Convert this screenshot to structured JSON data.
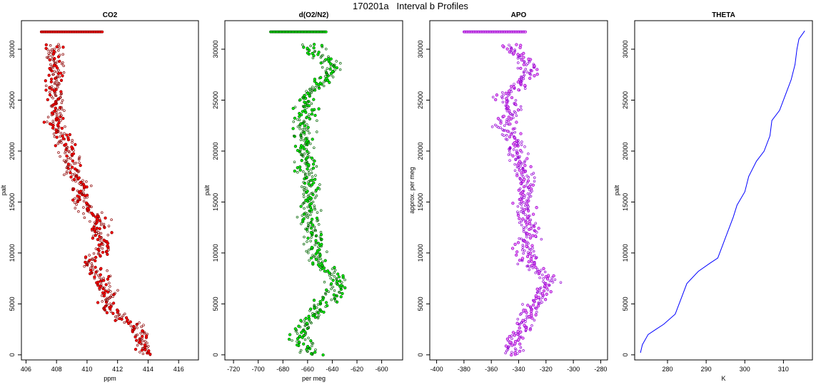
{
  "figure": {
    "title": "170201a   Interval b Profiles"
  },
  "chart_data": [
    {
      "type": "scatter",
      "title": "CO2",
      "xlabel": "ppm",
      "ylabel": "palt",
      "xlim": [
        405.7,
        417.3
      ],
      "ylim": [
        -500,
        32800
      ],
      "xticks": [
        406,
        408,
        410,
        412,
        414,
        416
      ],
      "yticks": [
        0,
        5000,
        10000,
        15000,
        20000,
        25000,
        30000
      ],
      "colors": {
        "fill": "#ff0000",
        "stroke": "#8b0000"
      },
      "series": [
        {
          "trend": [
            [
              413.8,
              0
            ],
            [
              413.6,
              1500
            ],
            [
              413.0,
              3000
            ],
            [
              411.4,
              4500
            ],
            [
              411.3,
              6000
            ],
            [
              411.0,
              7500
            ],
            [
              410.0,
              9000
            ],
            [
              411.2,
              10500
            ],
            [
              410.8,
              12000
            ],
            [
              410.7,
              13500
            ],
            [
              409.6,
              15000
            ],
            [
              409.6,
              16500
            ],
            [
              409.1,
              18000
            ],
            [
              408.9,
              19500
            ],
            [
              408.5,
              21000
            ],
            [
              407.8,
              22500
            ],
            [
              408.0,
              24000
            ],
            [
              407.8,
              25500
            ],
            [
              407.9,
              27000
            ],
            [
              408.0,
              28500
            ],
            [
              407.9,
              30000
            ]
          ],
          "top_band": {
            "y": 31700,
            "x_from": 407.0,
            "x_to": 411.0
          }
        }
      ]
    },
    {
      "type": "scatter",
      "title": "d(O2/N2)",
      "xlabel": "per meg",
      "ylabel": "palt",
      "xlim": [
        -727,
        -583
      ],
      "ylim": [
        -500,
        32800
      ],
      "xticks": [
        -720,
        -700,
        -680,
        -660,
        -640,
        -620,
        -600
      ],
      "yticks": [
        0,
        5000,
        10000,
        15000,
        20000,
        25000,
        30000
      ],
      "colors": {
        "fill": "#00ee00",
        "stroke": "#006400"
      },
      "series": [
        {
          "trend": [
            [
              -655,
              0
            ],
            [
              -668,
              1500
            ],
            [
              -662,
              3000
            ],
            [
              -650,
              4500
            ],
            [
              -640,
              6000
            ],
            [
              -635,
              7500
            ],
            [
              -650,
              9000
            ],
            [
              -655,
              10500
            ],
            [
              -655,
              12000
            ],
            [
              -660,
              13500
            ],
            [
              -658,
              15000
            ],
            [
              -657,
              16500
            ],
            [
              -660,
              18000
            ],
            [
              -660,
              19500
            ],
            [
              -662,
              21000
            ],
            [
              -665,
              22500
            ],
            [
              -660,
              24000
            ],
            [
              -662,
              25500
            ],
            [
              -645,
              27000
            ],
            [
              -640,
              28500
            ],
            [
              -655,
              30000
            ]
          ],
          "top_band": {
            "y": 31700,
            "x_from": -690,
            "x_to": -645
          }
        }
      ]
    },
    {
      "type": "scatter",
      "title": "APO",
      "xlabel": "",
      "ylabel": "approx. per meg",
      "xlim": [
        -405,
        -275
      ],
      "ylim": [
        -500,
        32800
      ],
      "xticks": [
        -400,
        -380,
        -360,
        -340,
        -320,
        -300,
        -280
      ],
      "yticks": [
        0,
        5000,
        10000,
        15000,
        20000,
        25000,
        30000
      ],
      "colors": {
        "fill": "#ee82ee",
        "stroke": "#9400d3"
      },
      "series": [
        {
          "trend": [
            [
              -345,
              0
            ],
            [
              -343,
              1500
            ],
            [
              -335,
              3000
            ],
            [
              -330,
              4500
            ],
            [
              -323,
              6000
            ],
            [
              -318,
              7500
            ],
            [
              -335,
              9000
            ],
            [
              -335,
              10500
            ],
            [
              -333,
              12000
            ],
            [
              -335,
              13500
            ],
            [
              -335,
              15000
            ],
            [
              -333,
              16500
            ],
            [
              -336,
              18000
            ],
            [
              -340,
              19500
            ],
            [
              -343,
              21000
            ],
            [
              -350,
              22500
            ],
            [
              -345,
              24000
            ],
            [
              -350,
              25500
            ],
            [
              -335,
              27000
            ],
            [
              -332,
              28500
            ],
            [
              -345,
              30000
            ]
          ],
          "top_band": {
            "y": 31700,
            "x_from": -380,
            "x_to": -335
          }
        }
      ]
    },
    {
      "type": "line",
      "title": "THETA",
      "xlabel": "K",
      "ylabel": "palt",
      "xlim": [
        271.5,
        317.5
      ],
      "ylim": [
        -500,
        32800
      ],
      "xticks": [
        280,
        290,
        300,
        310
      ],
      "yticks": [
        0,
        5000,
        10000,
        15000,
        20000,
        25000,
        30000
      ],
      "colors": {
        "line": "#0000ff"
      },
      "series": [
        {
          "values": [
            [
              273.0,
              200
            ],
            [
              273.5,
              1000
            ],
            [
              275.0,
              2000
            ],
            [
              277.0,
              2500
            ],
            [
              279.0,
              3000
            ],
            [
              282.0,
              4000
            ],
            [
              283.5,
              5500
            ],
            [
              285.0,
              7000
            ],
            [
              288.0,
              8200
            ],
            [
              291.0,
              9000
            ],
            [
              293.0,
              9500
            ],
            [
              294.0,
              10500
            ],
            [
              295.5,
              12000
            ],
            [
              297.0,
              13500
            ],
            [
              298.0,
              14700
            ],
            [
              300.0,
              16000
            ],
            [
              301.0,
              17500
            ],
            [
              303.0,
              19000
            ],
            [
              305.0,
              20000
            ],
            [
              306.5,
              21500
            ],
            [
              307.0,
              23000
            ],
            [
              309.0,
              24000
            ],
            [
              310.5,
              25500
            ],
            [
              312.0,
              27000
            ],
            [
              313.0,
              28500
            ],
            [
              313.5,
              30000
            ],
            [
              314.0,
              31000
            ],
            [
              315.5,
              31800
            ]
          ]
        }
      ]
    }
  ]
}
